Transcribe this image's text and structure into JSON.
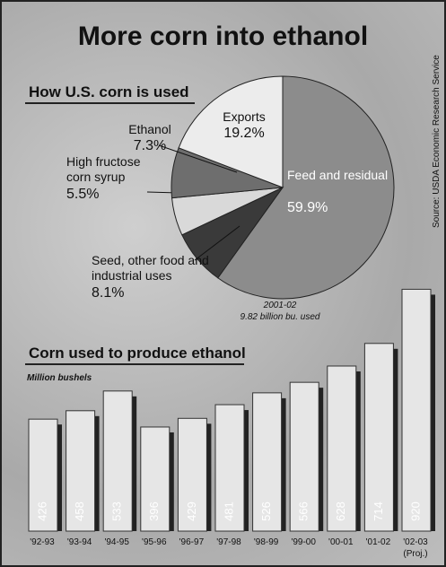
{
  "title": "More corn into ethanol",
  "source": "Source: USDA Economic Research Service",
  "chart_data": [
    {
      "type": "pie",
      "title": "How U.S. corn is used",
      "categories": [
        "Feed and residual",
        "Seed, other food and industrial uses",
        "High fructose corn syrup",
        "Ethanol",
        "Exports"
      ],
      "values": [
        59.9,
        8.1,
        5.5,
        7.3,
        19.2
      ],
      "value_labels": [
        "59.9%",
        "8.1%",
        "5.5%",
        "7.3%",
        "19.2%"
      ],
      "colors": [
        "#8c8c8c",
        "#3a3a3a",
        "#d9d9d9",
        "#6e6e6e",
        "#ececec"
      ],
      "annotations": [
        "2001-02",
        "9.82 billion bu. used"
      ]
    },
    {
      "type": "bar",
      "title": "Corn used to produce ethanol",
      "y_label": "Million bushels",
      "categories": [
        "'92-93",
        "'93-94",
        "'94-95",
        "'95-96",
        "'96-97",
        "'97-98",
        "'98-99",
        "'99-00",
        "'00-01",
        "'01-02",
        "'02-03 (Proj.)"
      ],
      "values": [
        426,
        458,
        533,
        396,
        429,
        481,
        526,
        566,
        628,
        714,
        920
      ],
      "color": "#e6e6e6",
      "ylim": [
        0,
        1000
      ]
    }
  ]
}
